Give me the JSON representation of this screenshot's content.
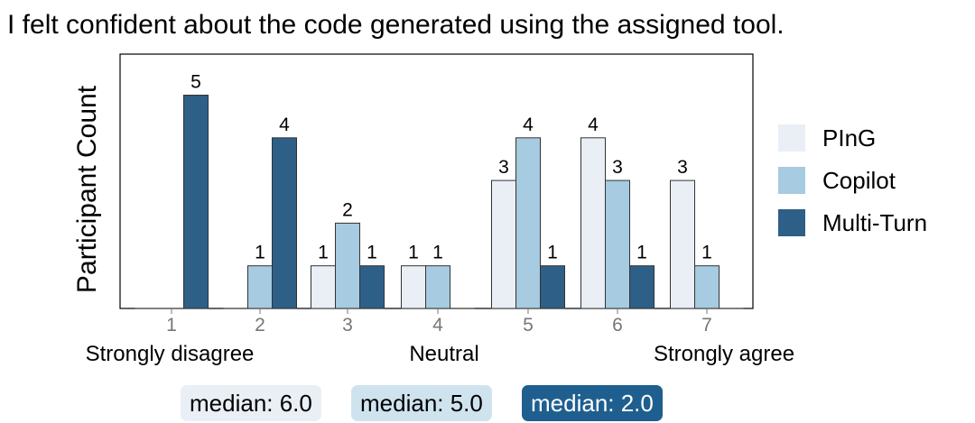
{
  "chart_data": {
    "type": "bar",
    "title": "I felt confident about the code generated using the assigned tool.",
    "ylabel": "Participant Count",
    "xlabel": "",
    "categories": [
      "1",
      "2",
      "3",
      "4",
      "5",
      "6",
      "7"
    ],
    "scale_anchors": [
      {
        "category": "1",
        "label": "Strongly disagree"
      },
      {
        "category": "4",
        "label": "Neutral"
      },
      {
        "category": "7",
        "label": "Strongly agree"
      }
    ],
    "ylim": [
      0,
      5
    ],
    "grid": false,
    "legend_position": "right",
    "series": [
      {
        "name": "PInG",
        "color": "#e9eff5",
        "values": [
          0,
          0,
          1,
          1,
          3,
          4,
          3
        ],
        "median_label": "median: 6.0"
      },
      {
        "name": "Copilot",
        "color": "#a7cbe0",
        "values": [
          0,
          1,
          2,
          1,
          4,
          3,
          1
        ],
        "median_label": "median: 5.0"
      },
      {
        "name": "Multi-Turn",
        "color": "#2e5f87",
        "values": [
          5,
          4,
          1,
          0,
          1,
          1,
          0
        ],
        "median_label": "median: 2.0"
      }
    ]
  },
  "medians": [
    {
      "text": "median: 6.0",
      "bg": "#e9eff5",
      "fg": "#000000"
    },
    {
      "text": "median: 5.0",
      "bg": "#cfe3ef",
      "fg": "#000000"
    },
    {
      "text": "median: 2.0",
      "bg": "#1f5f8f",
      "fg": "#ffffff"
    }
  ]
}
